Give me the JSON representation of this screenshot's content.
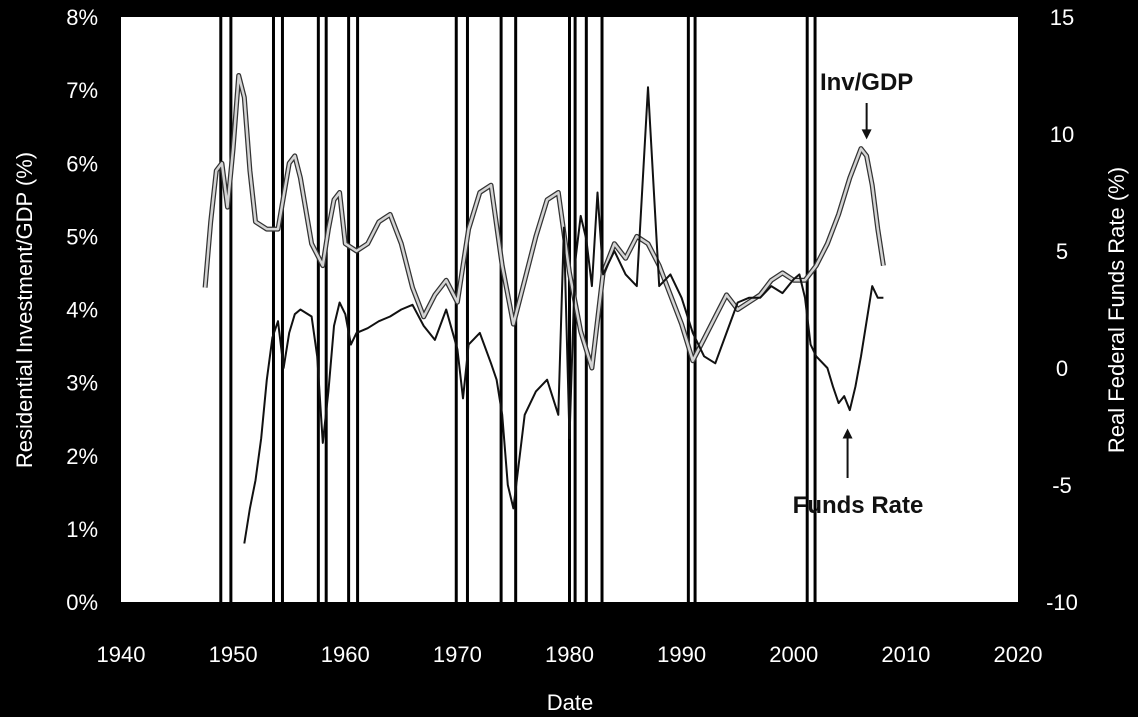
{
  "chart_data": {
    "type": "line",
    "title": "",
    "xlabel": "Date",
    "ylabel_left": "Residential Investment/GDP (%)",
    "ylabel_right": "Real Federal Funds Rate (%)",
    "xlim": [
      1940,
      2020
    ],
    "ylim_left": [
      0,
      8
    ],
    "ylim_right": [
      -10,
      15
    ],
    "x_ticks": [
      "1940",
      "1950",
      "1960",
      "1970",
      "1980",
      "1990",
      "2000",
      "2010",
      "2020"
    ],
    "y_left_ticks": [
      "0%",
      "1%",
      "2%",
      "3%",
      "4%",
      "5%",
      "6%",
      "7%",
      "8%"
    ],
    "y_right_ticks": [
      "-10",
      "-5",
      "0",
      "5",
      "10",
      "15"
    ],
    "grid": false,
    "legend": "none",
    "annotations": [
      {
        "text": "Inv/GDP",
        "x": 2006.5,
        "y_left": 6.3
      },
      {
        "text": "Funds Rate",
        "x": 2004.8,
        "y_left": 2.4
      }
    ],
    "recession_lines": [
      1948.9,
      1949.8,
      1953.6,
      1954.4,
      1957.6,
      1958.3,
      1960.3,
      1961.1,
      1969.9,
      1970.9,
      1973.9,
      1975.2,
      1980.0,
      1980.5,
      1981.5,
      1982.9,
      1990.6,
      1991.2,
      2001.2,
      2001.9
    ],
    "series": [
      {
        "name": "Inv/GDP",
        "axis": "left",
        "color": "#d4d4d4",
        "x": [
          1947.5,
          1948.0,
          1948.5,
          1949.0,
          1949.5,
          1950.0,
          1950.5,
          1951.0,
          1951.5,
          1952.0,
          1953.0,
          1954.0,
          1955.0,
          1955.5,
          1956.0,
          1957.0,
          1958.0,
          1958.5,
          1959.0,
          1959.5,
          1960.0,
          1961.0,
          1962.0,
          1963.0,
          1964.0,
          1965.0,
          1966.0,
          1967.0,
          1968.0,
          1969.0,
          1970.0,
          1971.0,
          1972.0,
          1973.0,
          1974.0,
          1975.0,
          1976.0,
          1977.0,
          1978.0,
          1979.0,
          1980.0,
          1981.0,
          1982.0,
          1983.0,
          1984.0,
          1985.0,
          1986.0,
          1987.0,
          1988.0,
          1989.0,
          1990.0,
          1991.0,
          1992.0,
          1993.0,
          1994.0,
          1995.0,
          1996.0,
          1997.0,
          1998.0,
          1999.0,
          2000.0,
          2001.0,
          2002.0,
          2003.0,
          2004.0,
          2005.0,
          2006.0,
          2006.5,
          2007.0,
          2007.5,
          2008.0
        ],
        "values": [
          4.3,
          5.2,
          5.9,
          6.0,
          5.4,
          6.2,
          7.2,
          6.9,
          5.9,
          5.2,
          5.1,
          5.1,
          6.0,
          6.1,
          5.8,
          4.9,
          4.6,
          5.1,
          5.5,
          5.6,
          4.9,
          4.8,
          4.9,
          5.2,
          5.3,
          4.9,
          4.3,
          3.9,
          4.2,
          4.4,
          4.1,
          5.1,
          5.6,
          5.7,
          4.6,
          3.8,
          4.4,
          5.0,
          5.5,
          5.6,
          4.5,
          3.7,
          3.2,
          4.5,
          4.9,
          4.7,
          5.0,
          4.9,
          4.6,
          4.2,
          3.8,
          3.3,
          3.6,
          3.9,
          4.2,
          4.0,
          4.1,
          4.2,
          4.4,
          4.5,
          4.4,
          4.4,
          4.6,
          4.9,
          5.3,
          5.8,
          6.2,
          6.1,
          5.7,
          5.1,
          4.6
        ]
      },
      {
        "name": "Funds Rate",
        "axis": "right",
        "color": "#111111",
        "x": [
          1951.0,
          1951.5,
          1952.0,
          1952.5,
          1953.0,
          1953.5,
          1954.0,
          1954.5,
          1955.0,
          1955.5,
          1956.0,
          1957.0,
          1957.5,
          1958.0,
          1958.5,
          1959.0,
          1959.5,
          1960.0,
          1960.5,
          1961.0,
          1962.0,
          1963.0,
          1964.0,
          1965.0,
          1966.0,
          1967.0,
          1968.0,
          1969.0,
          1970.0,
          1970.5,
          1971.0,
          1972.0,
          1973.0,
          1973.5,
          1974.0,
          1974.5,
          1975.0,
          1976.0,
          1977.0,
          1978.0,
          1979.0,
          1979.5,
          1980.0,
          1980.5,
          1981.0,
          1981.5,
          1982.0,
          1982.5,
          1983.0,
          1984.0,
          1985.0,
          1986.0,
          1987.0,
          1988.0,
          1989.0,
          1990.0,
          1991.0,
          1992.0,
          1993.0,
          1994.0,
          1995.0,
          1996.0,
          1997.0,
          1998.0,
          1999.0,
          2000.0,
          2000.5,
          2001.0,
          2001.5,
          2002.0,
          2003.0,
          2003.5,
          2004.0,
          2004.5,
          2005.0,
          2005.5,
          2006.0,
          2006.5,
          2007.0,
          2007.5,
          2008.0
        ],
        "values": [
          -7.5,
          -6.0,
          -4.8,
          -3.0,
          -0.5,
          1.3,
          2.0,
          0.0,
          1.5,
          2.3,
          2.5,
          2.2,
          0.5,
          -3.2,
          -1.0,
          1.8,
          2.8,
          2.3,
          1.0,
          1.5,
          1.7,
          2.0,
          2.2,
          2.5,
          2.7,
          1.8,
          1.2,
          2.5,
          0.8,
          -1.3,
          1.0,
          1.5,
          0.2,
          -0.5,
          -2.0,
          -5.0,
          -6.0,
          -2.0,
          -1.0,
          -0.5,
          -2.0,
          6.0,
          -3.0,
          4.5,
          6.5,
          5.5,
          3.5,
          7.5,
          4.0,
          5.0,
          4.0,
          3.5,
          12.0,
          3.5,
          4.0,
          3.0,
          1.5,
          0.5,
          0.2,
          1.5,
          2.8,
          3.0,
          3.0,
          3.5,
          3.2,
          3.8,
          4.0,
          3.0,
          1.0,
          0.5,
          0.0,
          -0.8,
          -1.5,
          -1.2,
          -1.8,
          -0.8,
          0.5,
          2.0,
          3.5,
          3.0,
          3.0
        ]
      }
    ]
  }
}
